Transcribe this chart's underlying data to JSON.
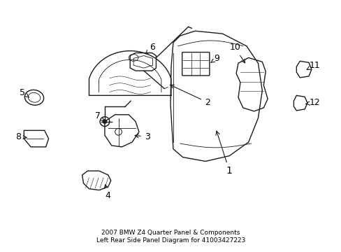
{
  "title": "2007 BMW Z4 Quarter Panel & Components\nLeft Rear Side Panel Diagram for 41003427223",
  "background_color": "#ffffff",
  "line_color": "#1a1a1a",
  "label_color": "#000000",
  "fig_width": 4.89,
  "fig_height": 3.6,
  "dpi": 100,
  "title_fontsize": 6.5,
  "label_fontsize": 8.5
}
